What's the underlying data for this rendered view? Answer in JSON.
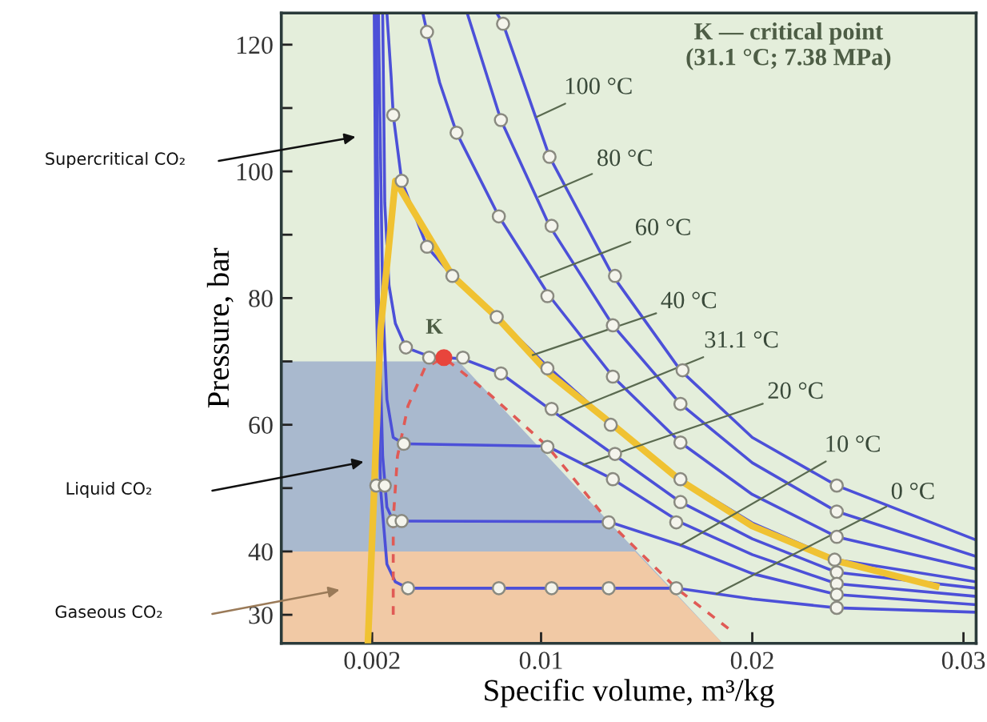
{
  "chart_data": {
    "type": "line",
    "xlabel": "Specific volume, m³/kg",
    "ylabel": "Pressure, bar",
    "xlim": [
      -0.0023,
      0.0306
    ],
    "ylim": [
      25.5,
      125
    ],
    "xticks": [
      0.002,
      0.01,
      0.02,
      0.03
    ],
    "yticks": [
      30,
      40,
      {
        "value": 50,
        "label": null
      },
      60,
      {
        "value": 70,
        "label": null
      },
      80,
      {
        "value": 90,
        "label": null
      },
      100,
      {
        "value": 110,
        "label": null
      },
      120
    ],
    "grid": false,
    "legend": false,
    "series": [
      {
        "type": "area",
        "color": "#a9b9ce",
        "x": [
          -0.0023,
          0.0061,
          0.0186
        ],
        "values": [
          70,
          70,
          25.5
        ]
      },
      {
        "type": "area",
        "color": "#f1c9a5",
        "x": [
          -0.0023,
          0.01445,
          0.0186
        ],
        "values": [
          40,
          40,
          25.5
        ]
      },
      {
        "color": "#f0c232",
        "x": [
          0.0018,
          0.0021,
          0.0024,
          0.0031,
          0.0058,
          0.0079,
          0.0104,
          0.0134,
          0.0166,
          0.02,
          0.024,
          0.0287
        ],
        "values": [
          25.5,
          50,
          75,
          98.5,
          83.5,
          77,
          68,
          60,
          51.2,
          44,
          38.5,
          34.5
        ]
      },
      {
        "type": "line",
        "color": "#4c50d8",
        "x": [
          0.0021,
          0.0022,
          0.0024,
          0.0027,
          0.0031,
          0.0037,
          0.0164,
          0.02,
          0.024,
          0.0306
        ],
        "values": [
          125,
          80,
          50,
          38,
          35.2,
          34.2,
          34.2,
          32.5,
          31.1,
          30.4
        ]
      },
      {
        "type": "line",
        "color": "#4c50d8",
        "x": [
          0.0022,
          0.0023,
          0.0025,
          0.0027,
          0.003,
          0.0132,
          0.0166,
          0.02,
          0.024,
          0.0306
        ],
        "values": [
          125,
          80,
          55,
          47,
          44.8,
          44.7,
          41,
          36.5,
          33.2,
          31.6
        ]
      },
      {
        "type": "line",
        "color": "#4c50d8",
        "x": [
          0.0023,
          0.0025,
          0.0027,
          0.003,
          0.0035,
          0.0103,
          0.0134,
          0.0166,
          0.02,
          0.024,
          0.0306
        ],
        "values": [
          125,
          80,
          64,
          58,
          57,
          56.6,
          51.4,
          44.6,
          39.5,
          34.9,
          32.9
        ]
      },
      {
        "type": "line",
        "color": "#4c50d8",
        "x": [
          0.0025,
          0.0026,
          0.0028,
          0.0031,
          0.0036,
          0.0047,
          0.0063,
          0.0081,
          0.0104,
          0.0134,
          0.0166,
          0.02,
          0.024,
          0.0306
        ],
        "values": [
          125,
          95,
          82,
          76,
          72.2,
          70.8,
          70.4,
          68.1,
          62.5,
          55.4,
          47.8,
          42,
          36.7,
          34.2
        ]
      },
      {
        "type": "line",
        "color": "#4c50d8",
        "x": [
          0.0027,
          0.0029,
          0.003,
          0.0034,
          0.0046,
          0.0058,
          0.0079,
          0.0104,
          0.0134,
          0.0166,
          0.02,
          0.024,
          0.0306
        ],
        "values": [
          125,
          115,
          108.9,
          98.5,
          88.1,
          83.5,
          77,
          68.9,
          60,
          51.4,
          44.5,
          38.7,
          35.2
        ]
      },
      {
        "type": "line",
        "color": "#4c50d8",
        "x": [
          0.0044,
          0.0046,
          0.0052,
          0.006,
          0.008,
          0.0104,
          0.0134,
          0.0166,
          0.02,
          0.024,
          0.0306
        ],
        "values": [
          125,
          122,
          114,
          106.1,
          92.9,
          80.3,
          67.6,
          57.2,
          49,
          42.3,
          37.2
        ]
      },
      {
        "type": "line",
        "color": "#4c50d8",
        "x": [
          0.0065,
          0.0081,
          0.0104,
          0.0134,
          0.0166,
          0.02,
          0.024,
          0.0306
        ],
        "values": [
          125,
          108.1,
          91.4,
          75.7,
          63.3,
          54,
          46.3,
          39.2
        ]
      },
      {
        "type": "line",
        "color": "#4c50d8",
        "x": [
          0.0079,
          0.0082,
          0.0104,
          0.0134,
          0.0166,
          0.02,
          0.024,
          0.0306
        ],
        "values": [
          125,
          123.3,
          102.3,
          83.5,
          68.6,
          58,
          50.4,
          41.8
        ]
      },
      {
        "type": "line",
        "color": "#e05a55",
        "line_style": "dashed",
        "x": [
          0.003,
          0.003,
          0.0032,
          0.0037,
          0.0045,
          0.0054,
          0.0075,
          0.0103,
          0.0132,
          0.0164,
          0.019
        ],
        "values": [
          30,
          45,
          55,
          63,
          69,
          70.6,
          65,
          56.6,
          44.7,
          34.2,
          27.5
        ]
      },
      {
        "type": "scatter",
        "marker": "circle",
        "color": "#f4f4ec",
        "x": [
          0.0046,
          0.0082,
          0.003,
          0.006,
          0.0081,
          0.0104,
          0.0034,
          0.008,
          0.0105,
          0.0046,
          0.0058,
          0.0103,
          0.0135,
          0.0079,
          0.0134,
          0.0036,
          0.0047,
          0.0063,
          0.0081,
          0.0103,
          0.0134,
          0.0167,
          0.0105,
          0.0133,
          0.0166,
          0.0035,
          0.0103,
          0.0135,
          0.0166,
          0.0134,
          0.0166,
          0.0166,
          0.0022,
          0.0026,
          0.003,
          0.0034,
          0.0132,
          0.0164,
          0.0037,
          0.008,
          0.0105,
          0.0132,
          0.0164,
          0.024,
          0.024,
          0.024,
          0.0239,
          0.024,
          0.024,
          0.024,
          0.024
        ],
        "values": [
          122,
          123.3,
          108.9,
          106.1,
          108.1,
          102.3,
          98.5,
          92.9,
          91.4,
          88.1,
          83.5,
          80.3,
          83.5,
          77,
          75.7,
          72.2,
          70.6,
          70.6,
          68.1,
          68.9,
          67.6,
          68.6,
          62.5,
          60,
          63.3,
          57,
          56.5,
          55.4,
          57.2,
          51.4,
          51.4,
          47.8,
          50.4,
          50.4,
          44.8,
          44.8,
          44.6,
          44.6,
          34.2,
          34.2,
          34.2,
          34.2,
          34.2,
          50.4,
          46.3,
          42.3,
          38.7,
          36.7,
          34.9,
          33.2,
          31.1
        ]
      },
      {
        "type": "scatter",
        "marker": "circle",
        "color": "#e8453c",
        "x": [
          0.0054
        ],
        "values": [
          70.6
        ]
      }
    ],
    "annotations": [
      {
        "text": "100 °C",
        "x": 0.0098,
        "y": 108.6
      },
      {
        "text": "80 °C",
        "x": 0.0099,
        "y": 96
      },
      {
        "text": "60 °C",
        "x": 0.00997,
        "y": 83.3
      },
      {
        "text": "40 °C",
        "x": 0.0096,
        "y": 71
      },
      {
        "text": "31.1 °C",
        "x": 0.0109,
        "y": 61.5
      },
      {
        "text": "20 °C",
        "x": 0.012,
        "y": 53.7
      },
      {
        "text": "10 °C",
        "x": 0.0166,
        "y": 41
      },
      {
        "text": "0 °C",
        "x": 0.0183,
        "y": 33.3
      },
      {
        "text": "K",
        "x": 0.0054,
        "y": 70.6
      },
      "K — critical point\n(31.1 °C; 7.38 MPa)",
      "Supercritical CO₂",
      "Liquid CO₂",
      "Gaseous CO₂"
    ]
  }
}
